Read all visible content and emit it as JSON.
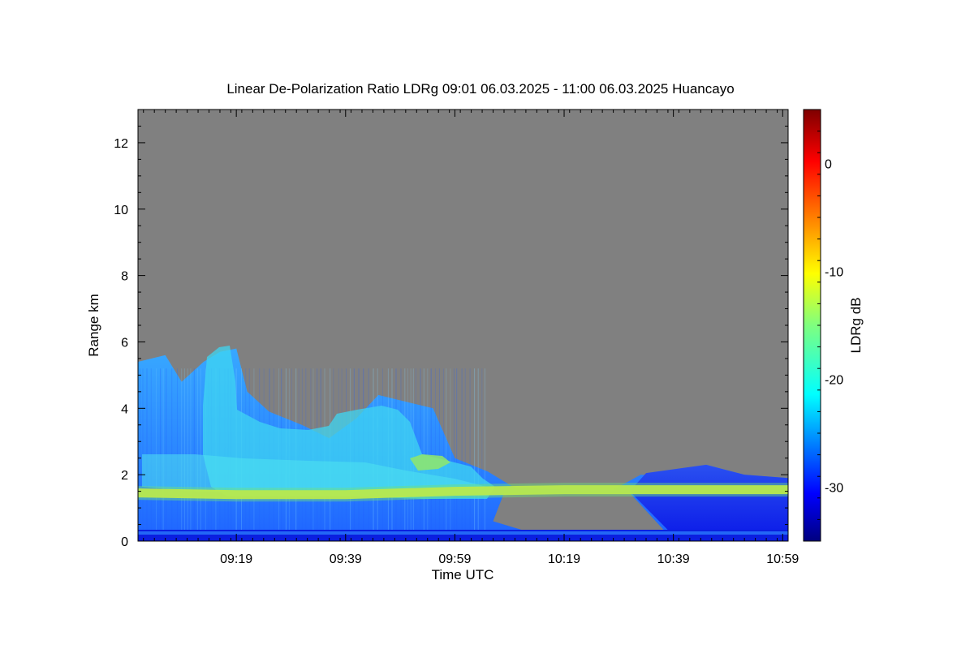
{
  "chart_data": {
    "type": "heatmap",
    "title": "Linear De-Polarization Ratio LDRg   09:01 06.03.2025 - 11:00 06.03.2025 Huancayo",
    "xlabel": "Time UTC",
    "ylabel": "Range km",
    "colorbar_label": "LDRg dB",
    "x_ticks": [
      "09:19",
      "09:39",
      "09:59",
      "10:19",
      "10:39",
      "10:59"
    ],
    "y_ticks": [
      "0",
      "2",
      "4",
      "6",
      "8",
      "10",
      "12"
    ],
    "colorbar_ticks": [
      "0",
      "-10",
      "-20",
      "-30"
    ],
    "colorbar_range": [
      -35,
      5
    ],
    "ylim": [
      0,
      13
    ],
    "x_range": [
      "09:01",
      "11:00"
    ],
    "no_data_color": "#808080",
    "colormap": [
      "#00007f",
      "#0000ff",
      "#007fff",
      "#00ffff",
      "#7fff7f",
      "#ffff00",
      "#ff7f00",
      "#ff0000",
      "#7f0000"
    ],
    "cloud_top_km": [
      {
        "time": "09:01",
        "value": 5.4
      },
      {
        "time": "09:06",
        "value": 5.6
      },
      {
        "time": "09:09",
        "value": 4.8
      },
      {
        "time": "09:13",
        "value": 5.4
      },
      {
        "time": "09:16",
        "value": 5.7
      },
      {
        "time": "09:19",
        "value": 5.8
      },
      {
        "time": "09:21",
        "value": 4.5
      },
      {
        "time": "09:25",
        "value": 3.9
      },
      {
        "time": "09:31",
        "value": 3.5
      },
      {
        "time": "09:36",
        "value": 3.1
      },
      {
        "time": "09:41",
        "value": 3.7
      },
      {
        "time": "09:45",
        "value": 4.4
      },
      {
        "time": "09:50",
        "value": 4.2
      },
      {
        "time": "09:55",
        "value": 4.0
      },
      {
        "time": "09:59",
        "value": 2.5
      },
      {
        "time": "10:05",
        "value": 2.1
      },
      {
        "time": "10:10",
        "value": 1.6
      },
      {
        "time": "10:19",
        "value": 1.55
      },
      {
        "time": "10:28",
        "value": 1.55
      },
      {
        "time": "10:33",
        "value": 2.0
      },
      {
        "time": "10:39",
        "value": 2.0
      },
      {
        "time": "10:45",
        "value": 2.3
      },
      {
        "time": "10:52",
        "value": 2.0
      },
      {
        "time": "11:00",
        "value": 1.9
      }
    ],
    "boundary_layer_km": [
      {
        "time": "09:01",
        "value": 1.45
      },
      {
        "time": "09:19",
        "value": 1.4
      },
      {
        "time": "09:39",
        "value": 1.4
      },
      {
        "time": "09:59",
        "value": 1.5
      },
      {
        "time": "10:19",
        "value": 1.55
      },
      {
        "time": "10:39",
        "value": 1.55
      },
      {
        "time": "11:00",
        "value": 1.55
      }
    ]
  }
}
